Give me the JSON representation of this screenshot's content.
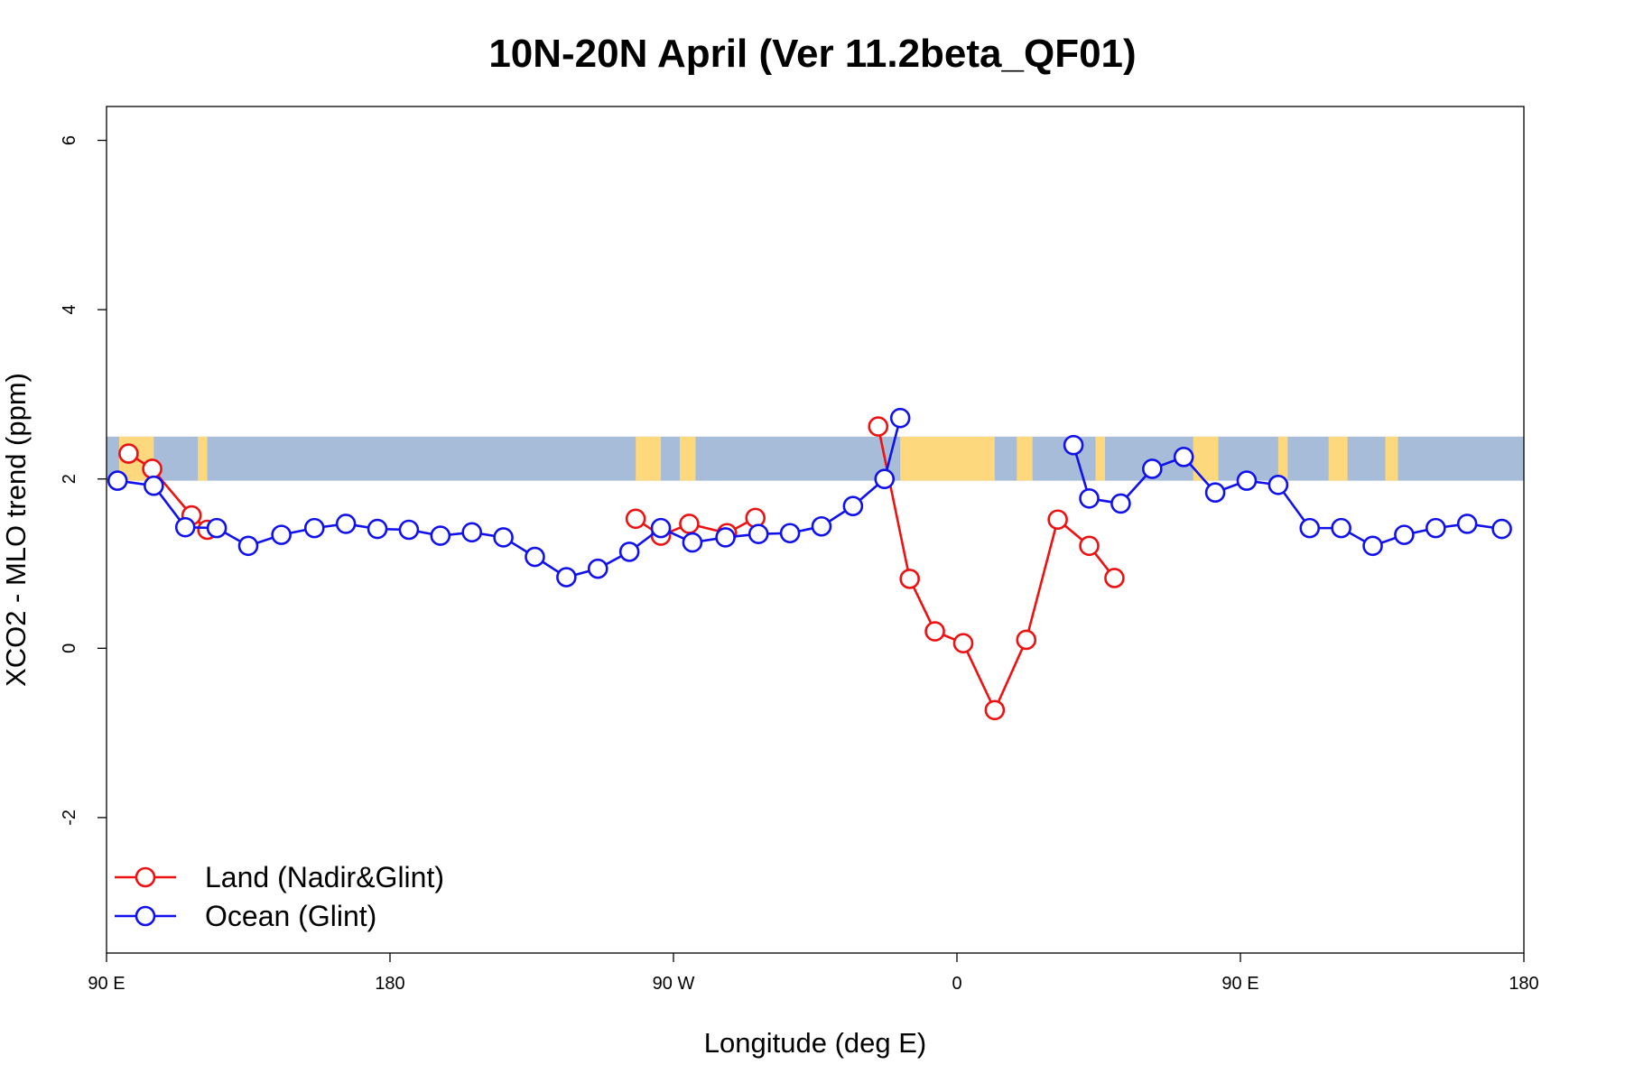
{
  "chart_data": {
    "type": "line",
    "title": "10N-20N April (Ver 11.2beta_QF01)",
    "xlabel": "Longitude (deg E)",
    "ylabel": "XCO2 - MLO trend (ppm)",
    "xlim": [
      90,
      540
    ],
    "ylim": [
      -3.6,
      6.4
    ],
    "x_ticks": [
      {
        "value": 90,
        "label": "90 E"
      },
      {
        "value": 180,
        "label": "180"
      },
      {
        "value": 270,
        "label": "90 W"
      },
      {
        "value": 360,
        "label": "0"
      },
      {
        "value": 450,
        "label": "90 E"
      },
      {
        "value": 540,
        "label": "180"
      }
    ],
    "y_ticks": [
      {
        "value": -2,
        "label": "-2"
      },
      {
        "value": 0,
        "label": "0"
      },
      {
        "value": 2,
        "label": "2"
      },
      {
        "value": 4,
        "label": "4"
      },
      {
        "value": 6,
        "label": "6"
      }
    ],
    "map_strip": {
      "ymin": 1.98,
      "ymax": 2.5,
      "ocean_color": "#a7bcd9",
      "land_color": "#fdd87d"
    },
    "legend": {
      "position": "bottom-left"
    },
    "series": [
      {
        "name": "Land (Nadir&Glint)",
        "color": "#ee1111",
        "segments": [
          [
            [
              97,
              2.3
            ],
            [
              104.5,
              2.12
            ],
            [
              117,
              1.57
            ],
            [
              122,
              1.4
            ]
          ],
          [
            [
              258,
              1.53
            ],
            [
              266,
              1.33
            ],
            [
              275,
              1.47
            ],
            [
              287,
              1.36
            ],
            [
              296,
              1.54
            ]
          ],
          [
            [
              335,
              2.62
            ],
            [
              345,
              0.82
            ],
            [
              353,
              0.2
            ],
            [
              362,
              0.06
            ],
            [
              372,
              -0.73
            ],
            [
              382,
              0.1
            ],
            [
              392,
              1.52
            ],
            [
              402,
              1.21
            ],
            [
              410,
              0.83
            ]
          ]
        ]
      },
      {
        "name": "Ocean (Glint)",
        "color": "#1111ee",
        "segments": [
          [
            [
              93.5,
              1.98
            ],
            [
              105,
              1.92
            ],
            [
              115,
              1.43
            ],
            [
              125,
              1.42
            ],
            [
              135,
              1.21
            ],
            [
              145.5,
              1.34
            ],
            [
              156,
              1.42
            ],
            [
              166,
              1.47
            ],
            [
              176,
              1.41
            ],
            [
              186,
              1.4
            ],
            [
              196,
              1.33
            ],
            [
              206,
              1.37
            ],
            [
              216,
              1.31
            ],
            [
              226,
              1.08
            ],
            [
              236,
              0.84
            ],
            [
              246,
              0.94
            ],
            [
              256,
              1.14
            ],
            [
              266,
              1.42
            ],
            [
              276,
              1.25
            ],
            [
              286.5,
              1.31
            ],
            [
              297,
              1.35
            ],
            [
              307,
              1.36
            ],
            [
              317,
              1.44
            ],
            [
              327,
              1.68
            ],
            [
              337,
              2.0
            ],
            [
              342,
              2.72
            ]
          ],
          [
            [
              397,
              2.4
            ],
            [
              402,
              1.77
            ],
            [
              412,
              1.71
            ],
            [
              422,
              2.12
            ],
            [
              432,
              2.26
            ],
            [
              442,
              1.84
            ],
            [
              452,
              1.98
            ],
            [
              462,
              1.93
            ],
            [
              472,
              1.42
            ],
            [
              482,
              1.42
            ],
            [
              492,
              1.21
            ],
            [
              502,
              1.34
            ],
            [
              512,
              1.42
            ],
            [
              522,
              1.47
            ],
            [
              533,
              1.41
            ]
          ]
        ]
      }
    ]
  }
}
